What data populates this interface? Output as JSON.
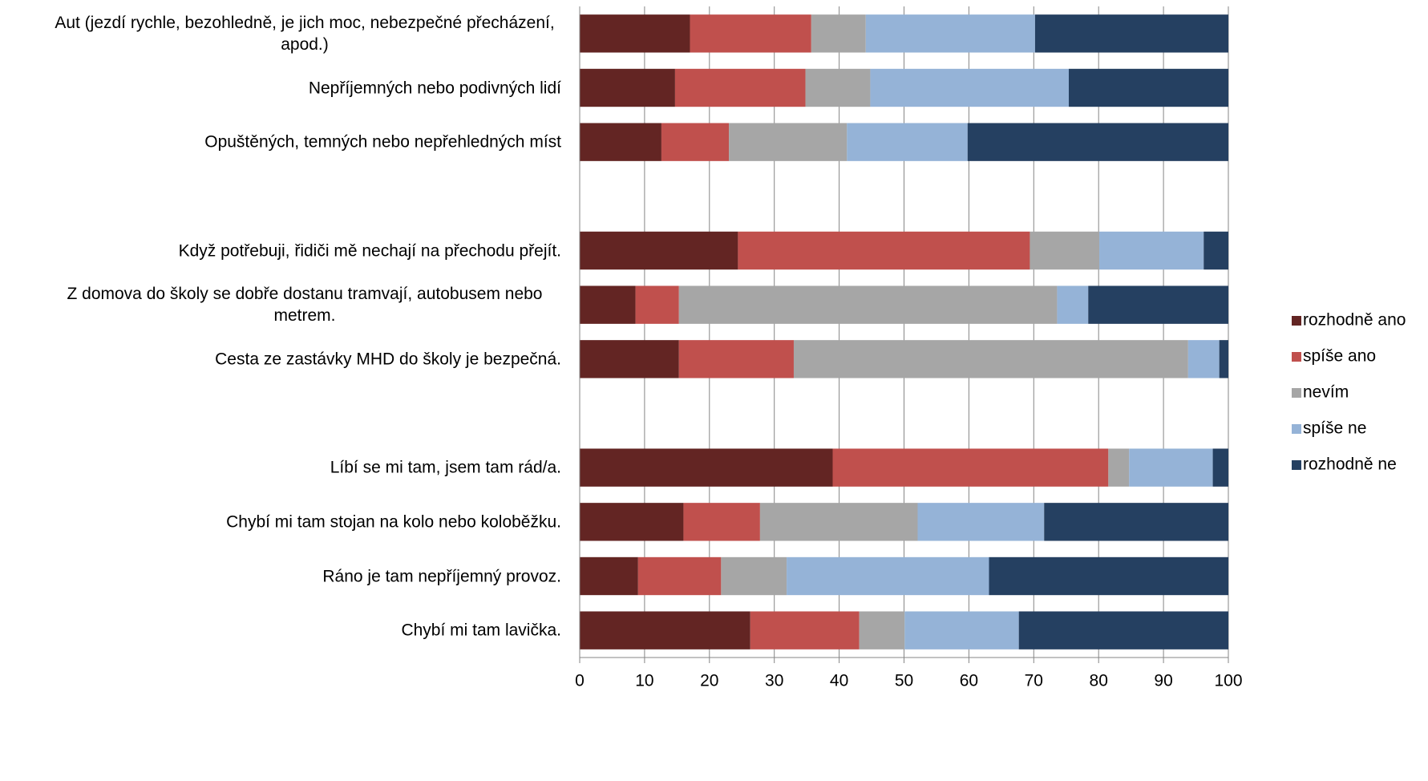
{
  "chart_data": {
    "type": "stacked_barh",
    "categories": [
      "Aut (jezdí rychle, bezohledně, je jich moc, nebezpečné přecházení, apod.)",
      "Nepříjemných nebo podivných lidí",
      "Opuštěných, temných nebo nepřehledných míst",
      null,
      "Když potřebuji, řidiči mě nechají na přechodu přejít.",
      "Z domova do školy se dobře dostanu tramvají, autobusem nebo metrem.",
      "Cesta ze zastávky MHD do školy je bezpečná.",
      null,
      "Líbí se mi tam, jsem tam rád/a.",
      "Chybí mi tam stojan na kolo nebo koloběžku.",
      "Ráno je tam nepříjemný provoz.",
      "Chybí mi tam lavička."
    ],
    "series": [
      {
        "name": "rozhodně ano",
        "color": "#632523",
        "values": [
          17.0,
          14.7,
          12.6,
          null,
          24.4,
          8.6,
          15.3,
          null,
          39.0,
          16.0,
          9.0,
          26.3
        ]
      },
      {
        "name": "spíše ano",
        "color": "#c0504d",
        "values": [
          18.7,
          20.1,
          10.4,
          null,
          45.0,
          6.7,
          17.7,
          null,
          42.5,
          11.8,
          12.8,
          16.8
        ]
      },
      {
        "name": "nevím",
        "color": "#a6a6a6",
        "values": [
          8.4,
          10.0,
          18.2,
          null,
          10.7,
          58.3,
          60.8,
          null,
          3.2,
          24.3,
          10.1,
          7.0
        ]
      },
      {
        "name": "spíše ne",
        "color": "#95b3d7",
        "values": [
          26.1,
          30.6,
          18.6,
          null,
          16.1,
          4.8,
          4.8,
          null,
          12.9,
          19.5,
          31.2,
          17.6
        ]
      },
      {
        "name": "rozhodně ne",
        "color": "#254061",
        "values": [
          29.8,
          24.6,
          40.2,
          null,
          3.8,
          21.6,
          1.4,
          null,
          2.4,
          28.4,
          36.9,
          32.3
        ]
      }
    ],
    "xlim": [
      0,
      100
    ],
    "xticks": [
      0,
      10,
      20,
      30,
      40,
      50,
      60,
      70,
      80,
      90,
      100
    ],
    "grid": true,
    "legend": "right"
  }
}
